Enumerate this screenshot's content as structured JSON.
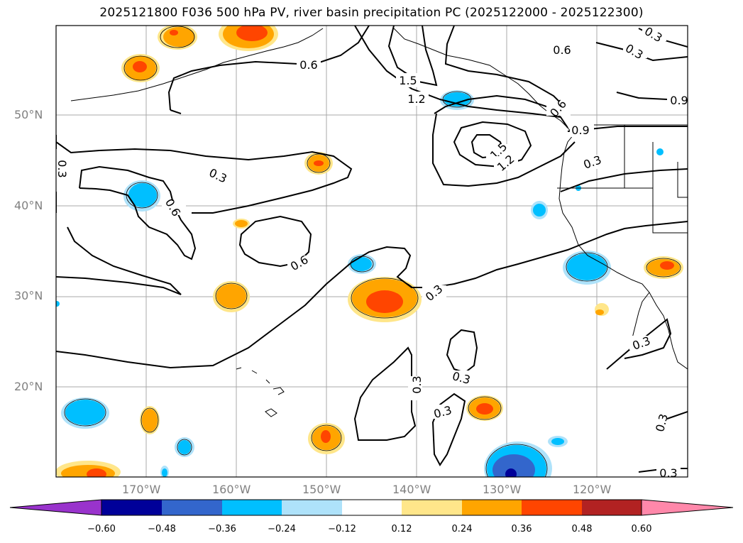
{
  "title": "2025121800 F036 500 hPa PV, river basin precipitation PC (2025122000 - 2025122300)",
  "map": {
    "lon_labels": [
      "170°W",
      "160°W",
      "150°W",
      "140°W",
      "130°W",
      "120°W"
    ],
    "lat_labels": [
      "50°N",
      "40°N",
      "30°N",
      "20°N"
    ],
    "contour_labels": [
      {
        "text": "0.6"
      },
      {
        "text": "1.5"
      },
      {
        "text": "1.2"
      },
      {
        "text": "0.3"
      },
      {
        "text": "0.3"
      },
      {
        "text": "0.6"
      },
      {
        "text": "0.9"
      },
      {
        "text": "0.9"
      },
      {
        "text": "1.5"
      },
      {
        "text": "1.2"
      },
      {
        "text": "0.6"
      },
      {
        "text": "0.3"
      },
      {
        "text": "0.3"
      },
      {
        "text": "0.6"
      },
      {
        "text": "0.6"
      },
      {
        "text": "0.3"
      },
      {
        "text": "0.3"
      },
      {
        "text": "0.3"
      },
      {
        "text": "0.3"
      },
      {
        "text": "0.3"
      },
      {
        "text": "0.3"
      },
      {
        "text": "0.3"
      },
      {
        "text": "0.3"
      }
    ]
  },
  "colorbar": {
    "labels": [
      "−0.60",
      "−0.48",
      "−0.36",
      "−0.24",
      "−0.12",
      "0.12",
      "0.24",
      "0.36",
      "0.48",
      "0.60"
    ],
    "colors": {
      "under": "#9933cc",
      "n060": "#000099",
      "n048": "#3366cc",
      "n036": "#00bfff",
      "n024": "#aee2fa",
      "neutral": "#ffffff",
      "p012": "#ffe68a",
      "p024": "#ffa500",
      "p036": "#ff4500",
      "p048": "#b22222",
      "over": "#ff88aa"
    }
  }
}
